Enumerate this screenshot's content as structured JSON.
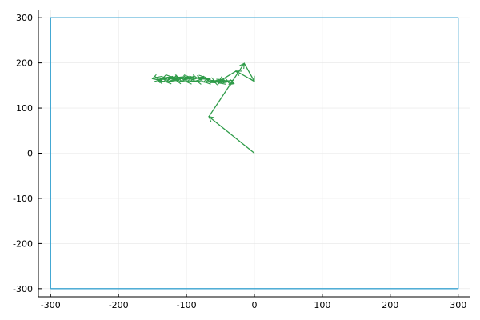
{
  "chart_data": {
    "type": "line",
    "title": "",
    "xlabel": "",
    "ylabel": "",
    "xlim": [
      -318,
      318
    ],
    "ylim": [
      -318,
      318
    ],
    "grid": true,
    "legend": "none",
    "x_ticks": [
      -300,
      -200,
      -100,
      0,
      100,
      200,
      300
    ],
    "y_ticks": [
      -300,
      -200,
      -100,
      0,
      100,
      200,
      300
    ],
    "series": [
      {
        "color": "#3AA3D1",
        "points": [
          [
            -300,
            -300
          ],
          [
            300,
            -300
          ],
          [
            300,
            300
          ],
          [
            -300,
            300
          ],
          [
            -300,
            -300
          ]
        ]
      },
      {
        "color": "#2E9B48",
        "points": [
          [
            0,
            0
          ],
          [
            -67,
            81
          ],
          [
            -15,
            199
          ],
          [
            0,
            159
          ],
          [
            -27,
            182
          ],
          [
            -52,
            159
          ],
          [
            -70,
            163
          ],
          [
            -82,
            167
          ],
          [
            -95,
            165
          ],
          [
            -104,
            163
          ],
          [
            -112,
            168
          ],
          [
            -120,
            164
          ],
          [
            -128,
            168
          ],
          [
            -136,
            164
          ],
          [
            -144,
            168
          ],
          [
            -150,
            165
          ],
          [
            -140,
            162
          ],
          [
            -128,
            166
          ],
          [
            -118,
            163
          ],
          [
            -108,
            167
          ],
          [
            -98,
            164
          ],
          [
            -88,
            167
          ],
          [
            -78,
            164
          ],
          [
            -68,
            165
          ],
          [
            -58,
            156
          ],
          [
            -48,
            163
          ],
          [
            -38,
            158
          ],
          [
            -30,
            154
          ],
          [
            -40,
            160
          ],
          [
            -50,
            155
          ],
          [
            -60,
            160
          ],
          [
            -72,
            157
          ],
          [
            -85,
            160
          ],
          [
            -100,
            158
          ],
          [
            -115,
            161
          ],
          [
            -130,
            158
          ],
          [
            -142,
            161
          ],
          [
            -135,
            166
          ],
          [
            -122,
            169
          ],
          [
            -110,
            166
          ],
          [
            -96,
            169
          ],
          [
            -84,
            166
          ],
          [
            -74,
            169
          ]
        ]
      }
    ]
  }
}
